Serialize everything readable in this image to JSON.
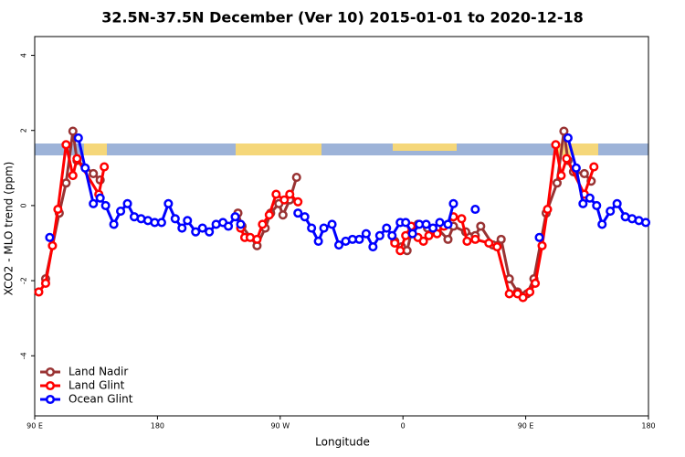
{
  "chart_data": {
    "type": "line",
    "title": "32.5N-37.5N December (Ver 10)   2015-01-01 to 2020-12-18",
    "x_label": "Longitude",
    "y_label": "XCO2 - MLO trend (ppm)",
    "xlim": [
      90,
      540
    ],
    "ylim": [
      -5.6,
      4.5
    ],
    "xticks": [
      {
        "value": 90,
        "label": "90 E"
      },
      {
        "value": 180,
        "label": "180"
      },
      {
        "value": 270,
        "label": "90 W"
      },
      {
        "value": 360,
        "label": "0"
      },
      {
        "value": 450,
        "label": "90 E"
      },
      {
        "value": 540,
        "label": "180"
      }
    ],
    "yticks": [
      -4,
      -2,
      0,
      2,
      4
    ],
    "legend": "bottom-left",
    "series": [
      {
        "name": "Land Nadir",
        "color": "#993333",
        "x": [
          98,
          108,
          113,
          118,
          121,
          133,
          138,
          null,
          239,
          242,
          253,
          259,
          263,
          269,
          272,
          277,
          282,
          null,
          354,
          359,
          363,
          367,
          371,
          378,
          385,
          393,
          397,
          406,
          413,
          417,
          426,
          432,
          438,
          444,
          451,
          456,
          465,
          473,
          478,
          481,
          485,
          493,
          498
        ],
        "values": [
          -1.95,
          -0.2,
          0.6,
          1.98,
          1.2,
          0.85,
          0.68,
          null,
          -0.2,
          -0.55,
          -1.07,
          -0.6,
          -0.2,
          0.05,
          -0.25,
          0.15,
          0.75,
          null,
          -0.95,
          -1.1,
          -1.2,
          -0.6,
          -0.5,
          -0.6,
          -0.6,
          -0.9,
          -0.55,
          -0.7,
          -0.8,
          -0.55,
          -1.05,
          -0.9,
          -1.95,
          -2.3,
          -2.35,
          -1.95,
          -0.2,
          0.6,
          1.98,
          1.2,
          0.9,
          0.85,
          0.65
        ]
      },
      {
        "name": "Land Glint",
        "color": "#ff0000",
        "x": [
          93,
          98,
          103,
          107,
          113,
          118,
          121,
          137,
          141,
          null,
          241,
          244,
          248,
          253,
          257,
          262,
          267,
          273,
          277,
          283,
          null,
          354,
          358,
          362,
          366,
          371,
          375,
          379,
          385,
          390,
          397,
          403,
          407,
          413,
          423,
          429,
          438,
          444,
          448,
          453,
          457,
          462,
          466,
          472,
          476,
          480,
          493,
          500
        ],
        "values": [
          -2.3,
          -2.07,
          -1.07,
          -0.1,
          1.62,
          0.8,
          1.25,
          0.3,
          1.03,
          null,
          -0.6,
          -0.85,
          -0.85,
          -0.9,
          -0.5,
          -0.25,
          0.3,
          0.15,
          0.3,
          0.1,
          null,
          -1.0,
          -1.2,
          -0.8,
          -0.55,
          -0.85,
          -0.95,
          -0.8,
          -0.75,
          -0.55,
          -0.3,
          -0.35,
          -0.95,
          -0.9,
          -1.0,
          -1.1,
          -2.35,
          -2.35,
          -2.45,
          -2.3,
          -2.07,
          -1.07,
          -0.1,
          1.62,
          0.8,
          1.25,
          0.3,
          1.03
        ]
      },
      {
        "name": "Ocean Glint",
        "color": "#0000ff",
        "x": [
          101,
          null,
          122,
          127,
          133,
          138,
          142,
          148,
          153,
          158,
          163,
          168,
          173,
          178,
          183,
          188,
          193,
          198,
          202,
          208,
          213,
          218,
          223,
          228,
          232,
          237,
          241,
          null,
          283,
          288,
          293,
          298,
          302,
          308,
          313,
          318,
          323,
          328,
          333,
          338,
          343,
          348,
          352,
          358,
          362,
          367,
          372,
          377,
          382,
          387,
          393,
          397,
          null,
          413,
          null,
          460,
          null,
          481,
          487,
          492,
          497,
          502,
          506,
          512,
          517,
          523,
          528,
          533,
          538
        ],
        "values": [
          -0.85,
          null,
          1.8,
          1.0,
          0.05,
          0.2,
          0.0,
          -0.5,
          -0.15,
          0.05,
          -0.3,
          -0.35,
          -0.4,
          -0.45,
          -0.45,
          0.05,
          -0.35,
          -0.6,
          -0.4,
          -0.7,
          -0.6,
          -0.7,
          -0.5,
          -0.45,
          -0.55,
          -0.3,
          -0.5,
          null,
          -0.2,
          -0.3,
          -0.6,
          -0.95,
          -0.6,
          -0.5,
          -1.05,
          -0.95,
          -0.9,
          -0.9,
          -0.75,
          -1.1,
          -0.8,
          -0.6,
          -0.8,
          -0.45,
          -0.45,
          -0.75,
          -0.5,
          -0.5,
          -0.6,
          -0.45,
          -0.5,
          0.05,
          null,
          -0.1,
          null,
          -0.85,
          null,
          1.8,
          1.0,
          0.05,
          0.2,
          0.0,
          -0.5,
          -0.15,
          0.05,
          -0.3,
          -0.35,
          -0.4,
          -0.45
        ]
      }
    ]
  }
}
